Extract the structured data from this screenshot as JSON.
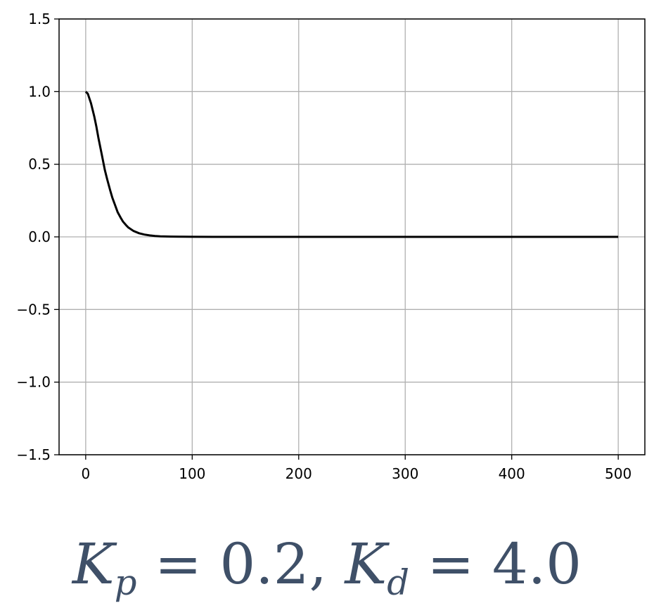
{
  "chart_data": {
    "type": "line",
    "title": "",
    "xlabel": "",
    "ylabel": "",
    "xlim": [
      -25,
      525
    ],
    "ylim": [
      -1.5,
      1.5
    ],
    "grid": true,
    "x_ticks": [
      0,
      100,
      200,
      300,
      400,
      500
    ],
    "y_ticks": [
      -1.5,
      -1.0,
      -0.5,
      0.0,
      0.5,
      1.0,
      1.5
    ],
    "x_tick_labels": [
      "0",
      "100",
      "200",
      "300",
      "400",
      "500"
    ],
    "y_tick_labels": [
      "−1.5",
      "−1.0",
      "−0.5",
      "0.0",
      "0.5",
      "1.0",
      "1.5"
    ],
    "series": [
      {
        "color": "#000000",
        "x": [
          0,
          2,
          5,
          8,
          10,
          12,
          15,
          18,
          20,
          23,
          25,
          28,
          30,
          33,
          35,
          38,
          40,
          45,
          50,
          55,
          60,
          65,
          70,
          80,
          90,
          100,
          120,
          150,
          200,
          300,
          400,
          500
        ],
        "y": [
          1.0,
          0.985,
          0.92,
          0.83,
          0.76,
          0.68,
          0.57,
          0.46,
          0.4,
          0.32,
          0.27,
          0.21,
          0.17,
          0.13,
          0.105,
          0.08,
          0.065,
          0.04,
          0.025,
          0.016,
          0.01,
          0.006,
          0.004,
          0.002,
          0.001,
          0.0005,
          0.0,
          0.0,
          0.0,
          0.0,
          0.0,
          0.0
        ]
      }
    ]
  },
  "caption": {
    "k": "K",
    "p_sub": "p",
    "p_eq": " = 0.2, ",
    "d_sub": "d",
    "d_eq": " = 4.0"
  }
}
